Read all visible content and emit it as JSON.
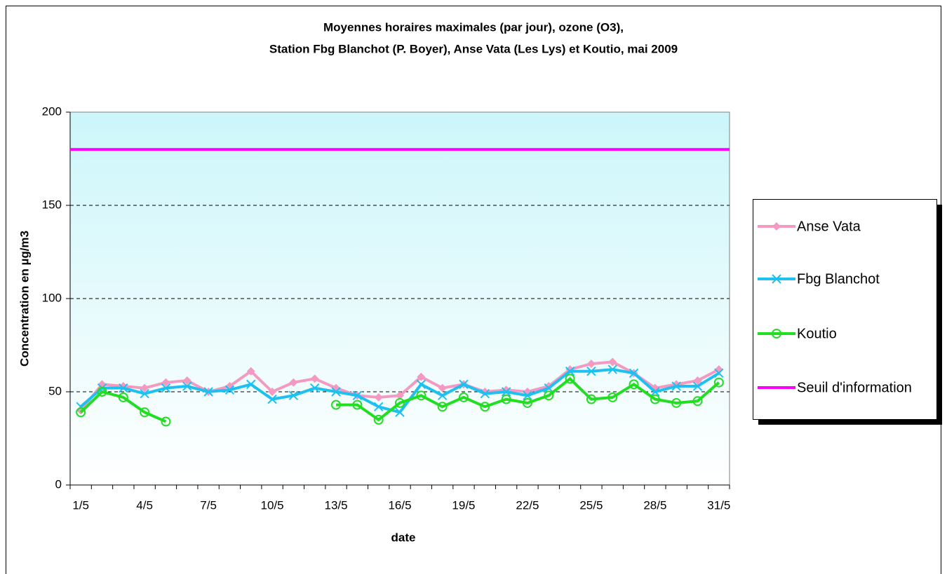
{
  "chart_data": {
    "type": "line",
    "title": [
      "Moyennes horaires maximales (par jour), ozone (O3),",
      "Station Fbg Blanchot (P. Boyer), Anse Vata (Les Lys) et Koutio, mai 2009"
    ],
    "x_label": "date",
    "y_label": "Concentration en µg/m3",
    "categories": [
      "1/5",
      null,
      null,
      "4/5",
      null,
      null,
      "7/5",
      null,
      null,
      "10/5",
      null,
      null,
      "13/5",
      null,
      null,
      "16/5",
      null,
      null,
      "19/5",
      null,
      null,
      "22/5",
      null,
      null,
      "25/5",
      null,
      null,
      "28/5",
      null,
      null,
      "31/5"
    ],
    "series": [
      {
        "name": "Anse Vata",
        "color": "#f49ac2",
        "marker": "diamond",
        "values": [
          40,
          54,
          53,
          52,
          55,
          56,
          50,
          53,
          61,
          50,
          55,
          57,
          52,
          48,
          47,
          48,
          58,
          52,
          54,
          50,
          51,
          50,
          53,
          62,
          65,
          66,
          60,
          52,
          54,
          56,
          62
        ]
      },
      {
        "name": "Fbg Blanchot",
        "color": "#1ec0f0",
        "marker": "x",
        "values": [
          42,
          52,
          52,
          49,
          52,
          53,
          50,
          51,
          54,
          46,
          48,
          52,
          50,
          48,
          42,
          39,
          54,
          48,
          54,
          49,
          50,
          48,
          52,
          61,
          61,
          62,
          60,
          50,
          53,
          53,
          60
        ]
      },
      {
        "name": "Koutio",
        "color": "#22dd22",
        "marker": "circle",
        "values": [
          39,
          50,
          47,
          39,
          34,
          null,
          null,
          null,
          null,
          null,
          null,
          null,
          43,
          43,
          35,
          44,
          48,
          42,
          47,
          42,
          46,
          44,
          48,
          57,
          46,
          47,
          54,
          46,
          44,
          45,
          55
        ]
      }
    ],
    "threshold": {
      "name": "Seuil d'information",
      "value": 180,
      "color": "#ff00ff"
    },
    "ylim": [
      0,
      200
    ],
    "yticks": [
      0,
      50,
      100,
      150,
      200
    ],
    "grid": true
  }
}
